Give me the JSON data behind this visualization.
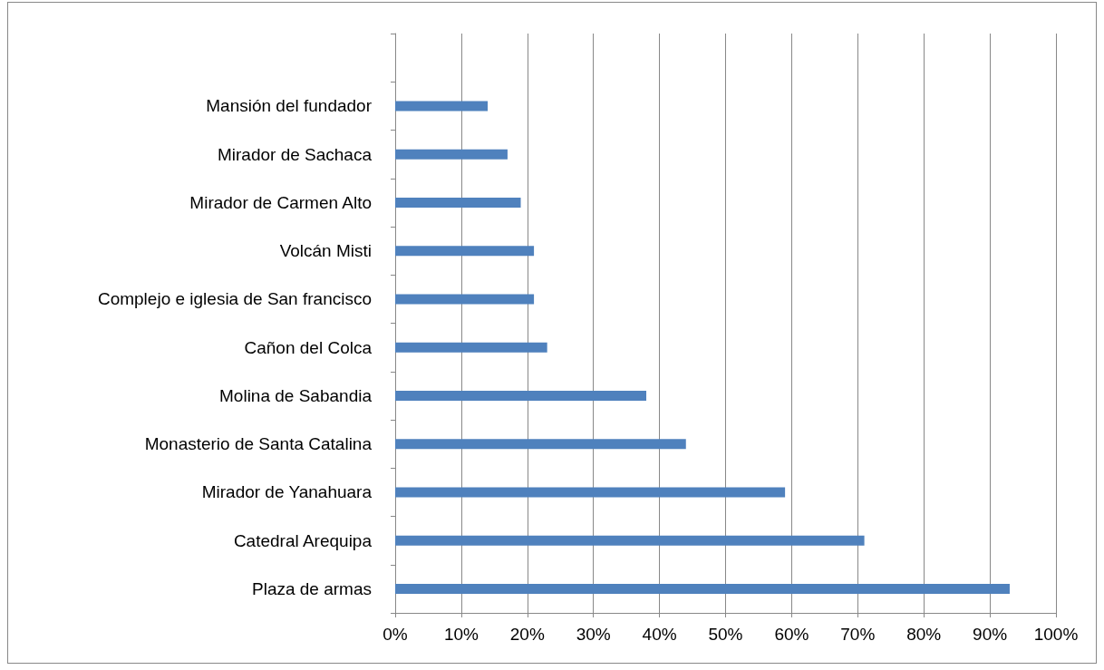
{
  "chart_data": {
    "type": "bar",
    "orientation": "horizontal",
    "categories": [
      null,
      "Mansión del fundador",
      "Mirador de Sachaca",
      "Mirador de Carmen Alto",
      "Volcán Misti",
      "Complejo e iglesia de San francisco",
      "Cañon del Colca",
      "Molina de Sabandia",
      "Monasterio de Santa Catalina",
      "Mirador de Yanahuara",
      "Catedral Arequipa",
      "Plaza de armas"
    ],
    "values": [
      null,
      14,
      17,
      19,
      21,
      21,
      23,
      38,
      44,
      59,
      71,
      93
    ],
    "color": "#4f81bd",
    "xlim": [
      0,
      100
    ],
    "xticks": [
      {
        "value": 0,
        "label": "0%"
      },
      {
        "value": 10,
        "label": "10%"
      },
      {
        "value": 20,
        "label": "20%"
      },
      {
        "value": 30,
        "label": "30%"
      },
      {
        "value": 40,
        "label": "40%"
      },
      {
        "value": 50,
        "label": "50%"
      },
      {
        "value": 60,
        "label": "60%"
      },
      {
        "value": 70,
        "label": "70%"
      },
      {
        "value": 80,
        "label": "80%"
      },
      {
        "value": 90,
        "label": "90%"
      },
      {
        "value": 100,
        "label": "100%"
      }
    ],
    "grid": "x"
  }
}
